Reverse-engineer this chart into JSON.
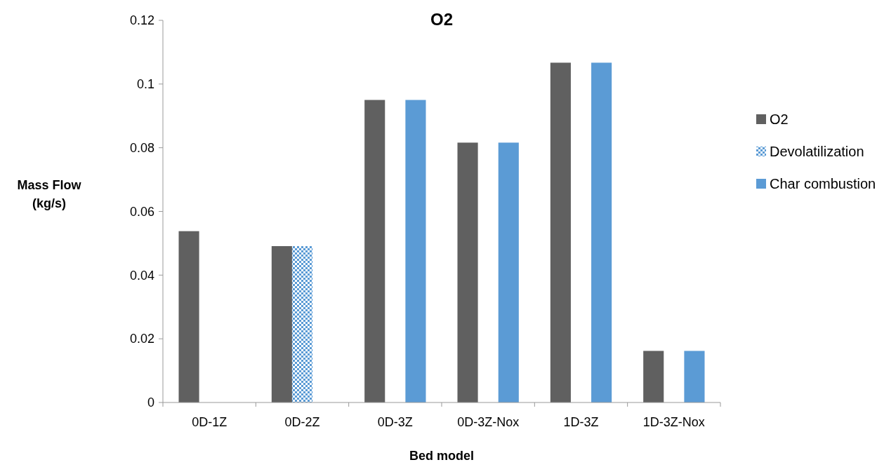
{
  "chart_data": {
    "type": "bar",
    "title": "O2",
    "xlabel": "Bed model",
    "ylabel": "Mass Flow (kg/s)",
    "categories": [
      "0D-1Z",
      "0D-2Z",
      "0D-3Z",
      "0D-3Z-Nox",
      "1D-3Z",
      "1D-3Z-Nox"
    ],
    "series": [
      {
        "name": "O2",
        "color": "#606060",
        "values": [
          0.0538,
          0.0491,
          0.095,
          0.0816,
          0.1067,
          0.0162
        ]
      },
      {
        "name": "Devolatilization",
        "color": "#5b9bd5",
        "values": [
          null,
          0.0491,
          null,
          null,
          null,
          null
        ]
      },
      {
        "name": "Char combustion",
        "color": "#5b9bd5",
        "values": [
          null,
          null,
          0.095,
          0.0816,
          0.1067,
          0.0162
        ]
      }
    ],
    "ylim": [
      0,
      0.12
    ],
    "yticks": [
      0,
      0.02,
      0.04,
      0.06,
      0.08,
      0.1,
      0.12
    ],
    "legend": "right"
  }
}
